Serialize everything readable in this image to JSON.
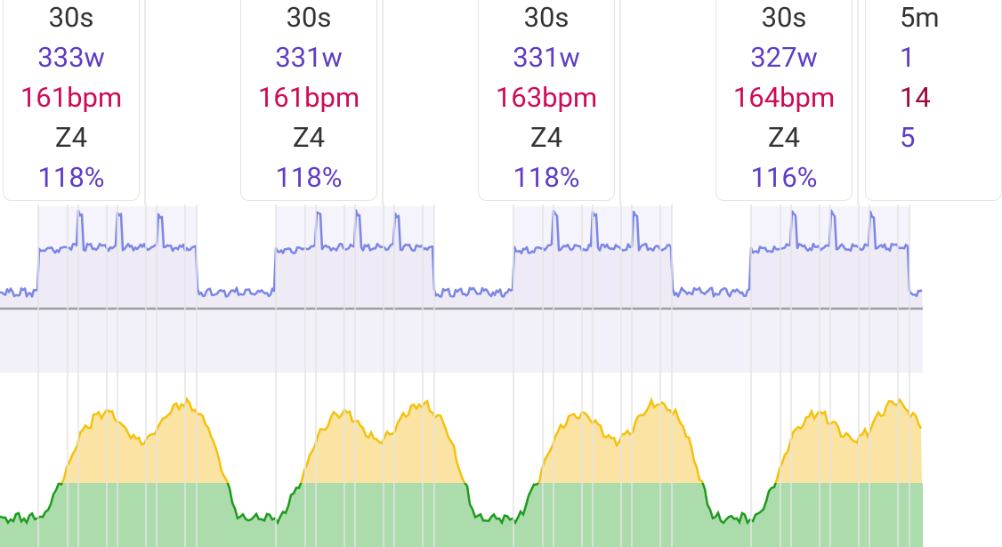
{
  "colors": {
    "power_line": "#7b86e6",
    "power_fill": "#eeebf7",
    "hr_line": "#f4c20d",
    "hr_fill": "#fbe3a3",
    "hr_low_line": "#1d9b1d",
    "hr_low_fill": "#acdcac",
    "duration_text": "#333333",
    "power_text": "#5f3dc4",
    "hr_text": "#cf0a57",
    "zone_text": "#333333",
    "pct_text": "#5f3dc4"
  },
  "intervals": [
    {
      "duration": "30s",
      "power": "333w",
      "hr": "161bpm",
      "zone": "Z4",
      "pct": "118%"
    },
    {
      "duration": "30s",
      "power": "331w",
      "hr": "161bpm",
      "zone": "Z4",
      "pct": "118%"
    },
    {
      "duration": "30s",
      "power": "331w",
      "hr": "163bpm",
      "zone": "Z4",
      "pct": "118%"
    },
    {
      "duration": "30s",
      "power": "327w",
      "hr": "164bpm",
      "zone": "Z4",
      "pct": "116%"
    },
    {
      "duration": "5m",
      "power": "1",
      "hr": "14",
      "zone": "",
      "pct": "5"
    }
  ]
}
